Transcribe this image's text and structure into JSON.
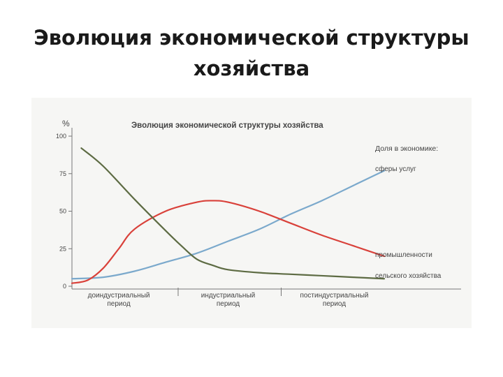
{
  "slide": {
    "title_line1": "Эволюция экономической структуры",
    "title_line2": "хозяйства"
  },
  "colors": {
    "services": "#7ba9cc",
    "industry": "#d9413a",
    "agriculture": "#5d6b43",
    "axis": "#777777",
    "text": "#333333"
  },
  "chart_data": {
    "type": "line",
    "title": "Эволюция экономической структуры хозяйства",
    "ylabel": "%",
    "ylim": [
      0,
      100
    ],
    "yticks": [
      0,
      25,
      50,
      75,
      100
    ],
    "xlim": [
      0,
      10
    ],
    "grid": false,
    "legend_title": "Доля в экономике:",
    "periods": [
      {
        "line1": "доиндустриальный",
        "line2": "период"
      },
      {
        "line1": "индустриальный",
        "line2": "период"
      },
      {
        "line1": "постиндустриальный",
        "line2": "период"
      }
    ],
    "series": [
      {
        "name": "сферы услуг",
        "color": "#7ba9cc",
        "x": [
          0,
          1,
          2,
          3,
          4,
          5,
          6,
          7,
          8,
          9,
          10
        ],
        "y": [
          5,
          6,
          10,
          16,
          22,
          30,
          38,
          48,
          57,
          67,
          77
        ]
      },
      {
        "name": "промышленности",
        "color": "#d9413a",
        "x": [
          0,
          0.5,
          1,
          1.5,
          2,
          3,
          4,
          4.5,
          5,
          6,
          7,
          8,
          9,
          10
        ],
        "y": [
          2,
          4,
          12,
          25,
          38,
          50,
          56,
          57,
          56,
          50,
          42,
          34,
          27,
          20
        ]
      },
      {
        "name": "сельского хозяйства",
        "color": "#5d6b43",
        "x": [
          0.3,
          1,
          2,
          3,
          3.5,
          4,
          4.5,
          5,
          6,
          7,
          8,
          9,
          10
        ],
        "y": [
          92,
          80,
          58,
          37,
          27,
          18,
          14,
          11,
          9,
          8,
          7,
          6,
          5
        ]
      }
    ]
  }
}
